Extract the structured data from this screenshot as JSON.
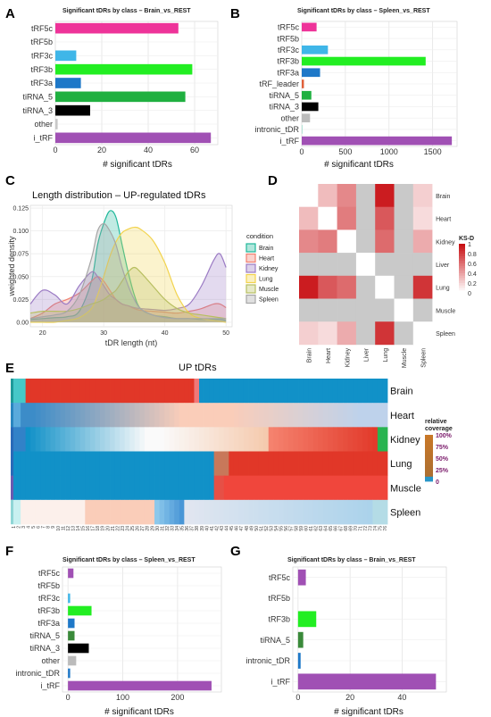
{
  "panel_labels": [
    "A",
    "B",
    "C",
    "D",
    "E",
    "F",
    "G"
  ],
  "chart_data": [
    {
      "panel": "A",
      "type": "bar",
      "orientation": "horizontal",
      "title": "Significant tDRs by class – Brain_vs_REST",
      "xlabel": "# significant tDRs",
      "categories": [
        "tRF5c",
        "tRF5b",
        "tRF3c",
        "tRF3b",
        "tRF3a",
        "tiRNA_5",
        "tiRNA_3",
        "other",
        "i_tRF"
      ],
      "values": [
        53,
        0,
        9,
        59,
        11,
        56,
        15,
        1,
        67
      ],
      "colors": [
        "#ee3399",
        "#cccccc",
        "#3fb6e8",
        "#22ee22",
        "#1e78c8",
        "#1fb040",
        "#000000",
        "#c8c8c8",
        "#a050b4"
      ],
      "xlim": [
        0,
        70
      ],
      "xticks": [
        "0",
        "20",
        "40",
        "60"
      ],
      "grid": true
    },
    {
      "panel": "B",
      "type": "bar",
      "orientation": "horizontal",
      "title": "Significant tDRs by class – Spleen_vs_REST",
      "xlabel": "# significant tDRs",
      "categories": [
        "tRF5c",
        "tRF5b",
        "tRF3c",
        "tRF3b",
        "tRF3a",
        "tRF_leader",
        "tiRNA_5",
        "tiRNA_3",
        "other",
        "intronic_tDR",
        "i_tRF"
      ],
      "values": [
        170,
        0,
        300,
        1420,
        210,
        25,
        110,
        190,
        95,
        8,
        1720
      ],
      "colors": [
        "#ee3399",
        "#cccccc",
        "#3fb6e8",
        "#22ee22",
        "#1e78c8",
        "#e0603a",
        "#1fb040",
        "#000000",
        "#bbbbbb",
        "#a0ddcc",
        "#a050b4"
      ],
      "xlim": [
        0,
        1780
      ],
      "xticks": [
        "0",
        "500",
        "1000",
        "1500"
      ],
      "grid": true
    },
    {
      "panel": "C",
      "type": "area",
      "title": "Length distribution – UP-regulated tDRs",
      "xlabel": "tDR length (nt)",
      "ylabel": "weighted density",
      "xlim": [
        18,
        51
      ],
      "ylim": [
        -0.005,
        0.128
      ],
      "xticks": [
        "20",
        "30",
        "40",
        "50"
      ],
      "yticks": [
        "0.00",
        "0.025",
        "0.050",
        "0.075",
        "0.100",
        "0.125"
      ],
      "legend_title": "condition",
      "legend_position": "right",
      "x": [
        18,
        20,
        22,
        24,
        26,
        28,
        29,
        30,
        31,
        32,
        33,
        34,
        35,
        36,
        38,
        40,
        42,
        44,
        46,
        48,
        49,
        50
      ],
      "series": [
        {
          "name": "Brain",
          "color": "#1fb89a",
          "values": [
            0.003,
            0.004,
            0.005,
            0.006,
            0.012,
            0.045,
            0.085,
            0.108,
            0.122,
            0.115,
            0.085,
            0.055,
            0.03,
            0.015,
            0.008,
            0.006,
            0.004,
            0.004,
            0.003,
            0.003,
            0.003,
            0.002
          ]
        },
        {
          "name": "Heart",
          "color": "#f08070",
          "values": [
            0.004,
            0.01,
            0.02,
            0.025,
            0.032,
            0.045,
            0.05,
            0.045,
            0.035,
            0.025,
            0.02,
            0.018,
            0.015,
            0.013,
            0.012,
            0.011,
            0.01,
            0.012,
            0.015,
            0.02,
            0.02,
            0.016
          ]
        },
        {
          "name": "Kidney",
          "color": "#9b7bc4",
          "values": [
            0.02,
            0.035,
            0.03,
            0.02,
            0.04,
            0.055,
            0.05,
            0.04,
            0.03,
            0.025,
            0.02,
            0.018,
            0.016,
            0.015,
            0.014,
            0.013,
            0.015,
            0.02,
            0.04,
            0.068,
            0.075,
            0.06
          ]
        },
        {
          "name": "Lung",
          "color": "#f2d34d",
          "values": [
            0.0,
            0.0,
            0.0,
            0.002,
            0.005,
            0.015,
            0.03,
            0.05,
            0.072,
            0.088,
            0.098,
            0.102,
            0.104,
            0.102,
            0.09,
            0.065,
            0.03,
            0.01,
            0.004,
            0.002,
            0.001,
            0.0
          ]
        },
        {
          "name": "Muscle",
          "color": "#b8bf60",
          "values": [
            0.01,
            0.012,
            0.012,
            0.012,
            0.015,
            0.02,
            0.022,
            0.025,
            0.03,
            0.035,
            0.045,
            0.055,
            0.06,
            0.055,
            0.04,
            0.025,
            0.015,
            0.01,
            0.008,
            0.006,
            0.005,
            0.004
          ]
        },
        {
          "name": "Spleen",
          "color": "#a6a6a6",
          "values": [
            0.004,
            0.006,
            0.008,
            0.012,
            0.03,
            0.07,
            0.1,
            0.108,
            0.1,
            0.085,
            0.06,
            0.04,
            0.025,
            0.015,
            0.008,
            0.005,
            0.004,
            0.004,
            0.004,
            0.004,
            0.004,
            0.004
          ]
        }
      ]
    },
    {
      "panel": "D",
      "type": "heatmap",
      "labels": [
        "Brain",
        "Heart",
        "Kidney",
        "Liver",
        "Lung",
        "Muscle",
        "Spleen"
      ],
      "x_labels": [
        "Brain",
        "Heart",
        "Kidney",
        "Liver",
        "Lung",
        "Muscle",
        "Spleen"
      ],
      "y_labels": [
        "Brain",
        "Heart",
        "Kidney",
        "Liver",
        "Lung",
        "Muscle",
        "Spleen"
      ],
      "legend_title": "KS-D",
      "legend_ticks": [
        "1",
        "0.8",
        "0.6",
        "0.4",
        "0.2",
        "0"
      ],
      "na_color": "#c9c9c9",
      "matrix": [
        [
          null,
          0.28,
          0.5,
          null,
          0.95,
          null,
          0.2
        ],
        [
          0.28,
          null,
          0.55,
          null,
          0.7,
          null,
          0.15
        ],
        [
          0.5,
          0.55,
          null,
          null,
          0.62,
          null,
          0.35
        ],
        [
          null,
          null,
          null,
          null,
          null,
          null,
          null
        ],
        [
          0.95,
          0.7,
          0.62,
          null,
          null,
          null,
          0.85
        ],
        [
          null,
          null,
          null,
          null,
          null,
          null,
          null
        ],
        [
          0.2,
          0.15,
          0.35,
          null,
          0.85,
          null,
          null
        ]
      ]
    },
    {
      "panel": "E",
      "type": "heatmap",
      "title": "UP tDRs",
      "rows": [
        "Brain",
        "Heart",
        "Kidney",
        "Lung",
        "Muscle",
        "Spleen"
      ],
      "columns": [
        "1",
        "2",
        "3",
        "4",
        "5",
        "6",
        "7",
        "8",
        "9",
        "10",
        "11",
        "12",
        "13",
        "14",
        "15",
        "16",
        "17",
        "18",
        "19",
        "20",
        "21",
        "22",
        "23",
        "24",
        "25",
        "26",
        "27",
        "28",
        "29",
        "30",
        "31",
        "32",
        "33",
        "34",
        "35",
        "36",
        "37",
        "38",
        "39",
        "40",
        "41",
        "42",
        "43",
        "44",
        "45",
        "46",
        "47",
        "48",
        "49",
        "50",
        "51",
        "52",
        "53",
        "54",
        "55",
        "56",
        "57",
        "58",
        "59",
        "60",
        "61",
        "62",
        "63",
        "64",
        "65",
        "66",
        "67",
        "68",
        "69",
        "70",
        "71",
        "72",
        "73",
        "74",
        "75",
        "76"
      ],
      "legend_title": "relative coverage",
      "legend_ticks": [
        "100%",
        "75%",
        "50%",
        "25%",
        "0"
      ]
    },
    {
      "panel": "F",
      "type": "bar",
      "orientation": "horizontal",
      "title": "Significant tDRs by class – Spleen_vs_REST",
      "xlabel": "# significant tDRs",
      "categories": [
        "tRF5c",
        "tRF5b",
        "tRF3c",
        "tRF3b",
        "tRF3a",
        "tiRNA_5",
        "tiRNA_3",
        "other",
        "intronic_tDR",
        "i_tRF"
      ],
      "values": [
        10,
        0,
        4,
        43,
        12,
        12,
        38,
        15,
        4,
        262
      ],
      "colors": [
        "#a050b4",
        "#cccccc",
        "#3fb6e8",
        "#22ee22",
        "#1e78c8",
        "#3a8a3a",
        "#000000",
        "#bbbbbb",
        "#1e78c8",
        "#a050b4"
      ],
      "xlim": [
        -10,
        280
      ],
      "xticks": [
        "0",
        "100",
        "200"
      ],
      "grid": true
    },
    {
      "panel": "G",
      "type": "bar",
      "orientation": "horizontal",
      "title": "Significant tDRs by class – Brain_vs_REST",
      "xlabel": "# significant tDRs",
      "categories": [
        "tRF5c",
        "tRF5b",
        "tRF3b",
        "tiRNA_5",
        "intronic_tDR",
        "i_tRF"
      ],
      "values": [
        3,
        0,
        7,
        2,
        1,
        53
      ],
      "colors": [
        "#a050b4",
        "#cccccc",
        "#22ee22",
        "#3a8a3a",
        "#1e78c8",
        "#a050b4"
      ],
      "xlim": [
        -2,
        57
      ],
      "xticks": [
        "0",
        "20",
        "40"
      ],
      "grid": true
    }
  ]
}
